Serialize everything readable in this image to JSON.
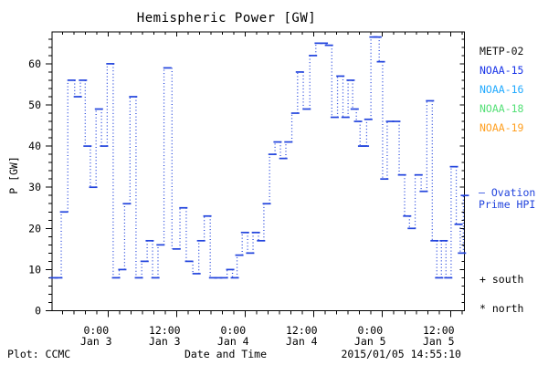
{
  "title": "Hemispheric Power [GW]",
  "colors": {
    "background": "#ffffff",
    "frame": "#000000",
    "data_line": "#2244dd"
  },
  "legend": {
    "satellites": [
      {
        "label": "METP-02",
        "color": "#111111"
      },
      {
        "label": "NOAA-15",
        "color": "#1a35e8"
      },
      {
        "label": "NOAA-16",
        "color": "#22aaff"
      },
      {
        "label": "NOAA-18",
        "color": "#55e077"
      },
      {
        "label": "NOAA-19",
        "color": "#ffa022"
      }
    ]
  },
  "annotations": {
    "ovation_line1": "— Ovation",
    "ovation_line2": "Prime HPI",
    "ovation_color": "#2244dd",
    "south_marker": "+ south",
    "north_marker": "* north"
  },
  "footer": {
    "left": "Plot: CCMC",
    "center": "Date and Time",
    "right": "2015/01/05 14:55:10"
  },
  "chart_data": {
    "type": "line",
    "title": "Hemispheric Power [GW]",
    "xlabel": "Date and Time",
    "ylabel": "P [GW]",
    "ylim": [
      0,
      67.5
    ],
    "yticks": [
      0,
      10,
      20,
      30,
      40,
      50,
      60
    ],
    "y_minor_step_gw": 2,
    "x_minor_step_hours": 2,
    "grid": false,
    "legend_position": "right-outside",
    "marker": "horizontal-dash",
    "connector": "dotted-vertical",
    "x_axis": {
      "unit": "hours since 2015-01-03 00:00 UT",
      "ticks": [
        {
          "t": 0,
          "line1": "0:00",
          "line2": "Jan 3"
        },
        {
          "t": 12,
          "line1": "12:00",
          "line2": "Jan 3"
        },
        {
          "t": 24,
          "line1": "0:00",
          "line2": "Jan 4"
        },
        {
          "t": 36,
          "line1": "12:00",
          "line2": "Jan 4"
        },
        {
          "t": 48,
          "line1": "0:00",
          "line2": "Jan 5"
        },
        {
          "t": 60,
          "line1": "12:00",
          "line2": "Jan 5"
        }
      ],
      "range_hours": [
        -9.8,
        62.4
      ]
    },
    "series": [
      {
        "name": "Ovation Prime HPI (NOAA-15)",
        "color": "#2244dd",
        "points": [
          [
            -9.5,
            8
          ],
          [
            -8.7,
            8
          ],
          [
            -7.7,
            24
          ],
          [
            -6.4,
            56
          ],
          [
            -5.3,
            52
          ],
          [
            -4.4,
            56
          ],
          [
            -3.6,
            40
          ],
          [
            -2.6,
            30
          ],
          [
            -1.6,
            49
          ],
          [
            -0.7,
            40
          ],
          [
            0.4,
            60
          ],
          [
            1.4,
            8
          ],
          [
            2.5,
            10
          ],
          [
            3.3,
            26
          ],
          [
            4.4,
            52
          ],
          [
            5.4,
            8
          ],
          [
            6.4,
            12
          ],
          [
            7.3,
            17
          ],
          [
            8.3,
            8
          ],
          [
            9.2,
            16
          ],
          [
            10.4,
            59
          ],
          [
            12.0,
            15
          ],
          [
            13.2,
            25
          ],
          [
            14.2,
            12
          ],
          [
            15.5,
            9
          ],
          [
            16.3,
            17
          ],
          [
            17.4,
            23
          ],
          [
            18.4,
            8
          ],
          [
            19.3,
            8
          ],
          [
            20.3,
            8
          ],
          [
            21.4,
            10
          ],
          [
            22.2,
            8
          ],
          [
            23.0,
            13.5
          ],
          [
            24.0,
            19
          ],
          [
            24.9,
            14
          ],
          [
            25.9,
            19
          ],
          [
            26.8,
            17
          ],
          [
            27.8,
            26
          ],
          [
            28.8,
            38
          ],
          [
            29.7,
            41
          ],
          [
            30.7,
            37
          ],
          [
            31.6,
            41
          ],
          [
            32.8,
            48
          ],
          [
            33.6,
            58
          ],
          [
            34.8,
            49
          ],
          [
            35.9,
            62
          ],
          [
            36.9,
            65
          ],
          [
            37.8,
            65
          ],
          [
            38.7,
            64.5
          ],
          [
            39.7,
            47
          ],
          [
            40.7,
            57
          ],
          [
            41.6,
            47
          ],
          [
            42.5,
            56
          ],
          [
            43.2,
            49
          ],
          [
            43.8,
            46
          ],
          [
            44.5,
            40
          ],
          [
            45.0,
            40
          ],
          [
            45.6,
            46.5
          ],
          [
            46.5,
            66.5
          ],
          [
            47.2,
            66.5
          ],
          [
            47.8,
            60.5
          ],
          [
            48.4,
            32
          ],
          [
            49.4,
            46
          ],
          [
            50.5,
            46
          ],
          [
            51.5,
            33
          ],
          [
            52.4,
            23
          ],
          [
            53.2,
            20
          ],
          [
            54.4,
            33
          ],
          [
            55.3,
            29
          ],
          [
            56.4,
            51
          ],
          [
            57.2,
            17
          ],
          [
            58.0,
            8
          ],
          [
            58.8,
            17
          ],
          [
            59.6,
            8
          ],
          [
            60.6,
            35
          ],
          [
            61.4,
            21
          ],
          [
            62.0,
            14
          ],
          [
            62.5,
            28
          ]
        ]
      }
    ]
  }
}
